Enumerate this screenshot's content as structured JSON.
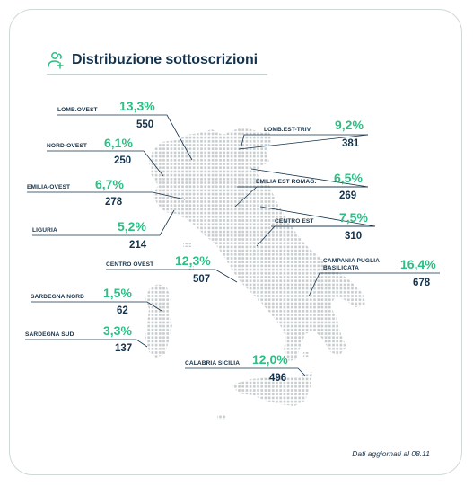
{
  "title": "Distribuzione sottoscrizioni",
  "icon": "users-plus-icon",
  "accent_color": "#2ebd84",
  "text_color": "#14324b",
  "footnote": "Dati aggiornati al 08.11",
  "regions": [
    {
      "name": "LOMB.OVEST",
      "pct": "13,3%",
      "count": "550"
    },
    {
      "name": "NORD-OVEST",
      "pct": "6,1%",
      "count": "250"
    },
    {
      "name": "EMILIA-OVEST",
      "pct": "6,7%",
      "count": "278"
    },
    {
      "name": "LIGURIA",
      "pct": "5,2%",
      "count": "214"
    },
    {
      "name": "CENTRO OVEST",
      "pct": "12,3%",
      "count": "507"
    },
    {
      "name": "SARDEGNA NORD",
      "pct": "1,5%",
      "count": "62"
    },
    {
      "name": "SARDEGNA SUD",
      "pct": "3,3%",
      "count": "137"
    },
    {
      "name": "LOMB.EST-TRIV.",
      "pct": "9,2%",
      "count": "381"
    },
    {
      "name": "EMILIA EST ROMAG.",
      "pct": "6,5%",
      "count": "269"
    },
    {
      "name": "CENTRO EST",
      "pct": "7,5%",
      "count": "310"
    },
    {
      "name": "CAMPANIA PUGLIA BASILICATA",
      "pct": "16,4%",
      "count": "678"
    },
    {
      "name": "CALABRIA SICILIA",
      "pct": "12,0%",
      "count": "496"
    }
  ]
}
